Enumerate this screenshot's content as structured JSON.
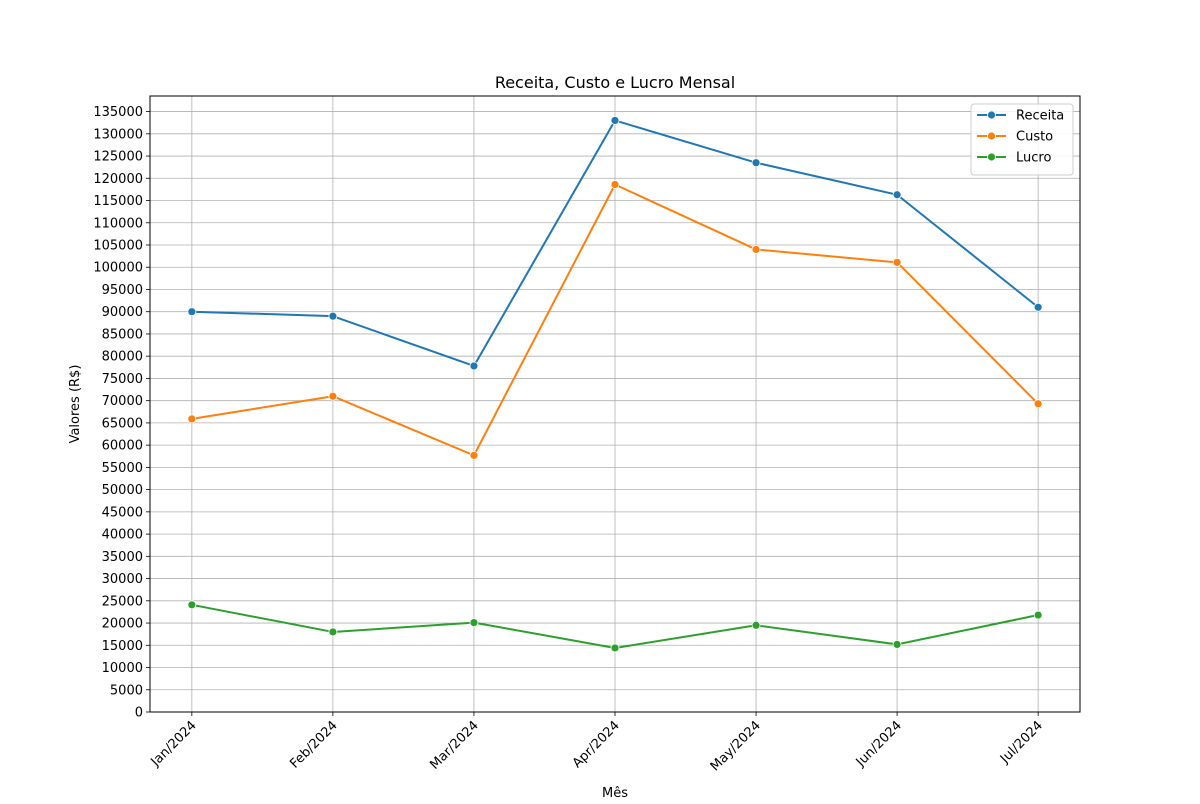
{
  "chart_data": {
    "type": "line",
    "title": "Receita, Custo e Lucro Mensal",
    "xlabel": "Mês",
    "ylabel": "Valores (R$)",
    "categories": [
      "Jan/2024",
      "Feb/2024",
      "Mar/2024",
      "Apr/2024",
      "May/2024",
      "Jun/2024",
      "Jul/2024"
    ],
    "ylim": [
      0,
      138500
    ],
    "yticks": [
      0,
      5000,
      10000,
      15000,
      20000,
      25000,
      30000,
      35000,
      40000,
      45000,
      50000,
      55000,
      60000,
      65000,
      70000,
      75000,
      80000,
      85000,
      90000,
      95000,
      100000,
      105000,
      110000,
      115000,
      120000,
      125000,
      130000,
      135000
    ],
    "grid": true,
    "legend_position": "top-right",
    "marker": "circle",
    "series": [
      {
        "name": "Receita",
        "color": "#1f77b4",
        "values": [
          90000,
          89000,
          77800,
          133000,
          123500,
          116300,
          91000
        ]
      },
      {
        "name": "Custo",
        "color": "#ff7f0e",
        "values": [
          65900,
          71000,
          57700,
          118600,
          104000,
          101100,
          69300
        ]
      },
      {
        "name": "Lucro",
        "color": "#2ca02c",
        "values": [
          24100,
          18000,
          20100,
          14400,
          19500,
          15200,
          21800
        ]
      }
    ]
  }
}
